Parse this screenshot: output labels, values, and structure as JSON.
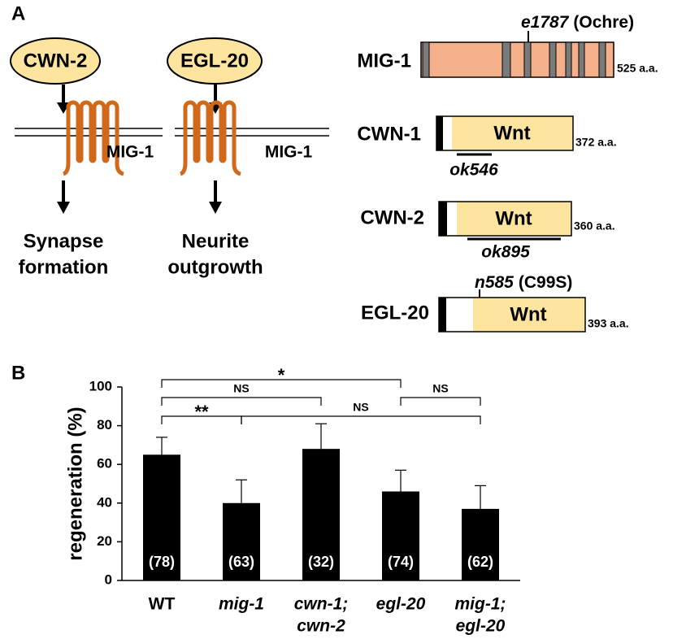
{
  "panel_a": {
    "label": "A",
    "pathways": [
      {
        "ligand": "CWN-2",
        "receptor": "MIG-1",
        "output": [
          "Synapse",
          "formation"
        ]
      },
      {
        "ligand": "EGL-20",
        "receptor": "MIG-1",
        "output": [
          "Neurite",
          "outgrowth"
        ]
      }
    ],
    "proteins": [
      {
        "name": "MIG-1",
        "length": "525 a.a.",
        "allele": "e1787",
        "note": "(Ochre)"
      },
      {
        "name": "CWN-1",
        "domain": "Wnt",
        "length": "372 a.a.",
        "deletion": "ok546"
      },
      {
        "name": "CWN-2",
        "domain": "Wnt",
        "length": "360 a.a.",
        "deletion": "ok895"
      },
      {
        "name": "EGL-20",
        "domain": "Wnt",
        "length": "393 a.a.",
        "allele": "n585",
        "note": "(C99S)"
      }
    ]
  },
  "panel_b": {
    "label": "B"
  },
  "chart_data": {
    "type": "bar",
    "ylabel": "regeneration (%)",
    "categories": [
      [
        "WT"
      ],
      [
        "mig-1"
      ],
      [
        "cwn-1;",
        "cwn-2"
      ],
      [
        "egl-20"
      ],
      [
        "mig-1;",
        "egl-20"
      ]
    ],
    "values": [
      65,
      40,
      68,
      46,
      37
    ],
    "errors": [
      9,
      12,
      13,
      11,
      12
    ],
    "n_labels": [
      "(78)",
      "(63)",
      "(32)",
      "(74)",
      "(62)"
    ],
    "color": "#000000",
    "ylim": [
      0,
      100
    ],
    "yticks": [
      0,
      20,
      40,
      60,
      80,
      100
    ],
    "comparisons": [
      {
        "from": 0,
        "to": 3,
        "label": "*"
      },
      {
        "from": 0,
        "to": 2,
        "label": "NS"
      },
      {
        "from": 0,
        "to": 1,
        "label": "**"
      },
      {
        "from": 1,
        "to": 4,
        "label": "NS"
      },
      {
        "from": 3,
        "to": 4,
        "label": "NS"
      }
    ]
  }
}
